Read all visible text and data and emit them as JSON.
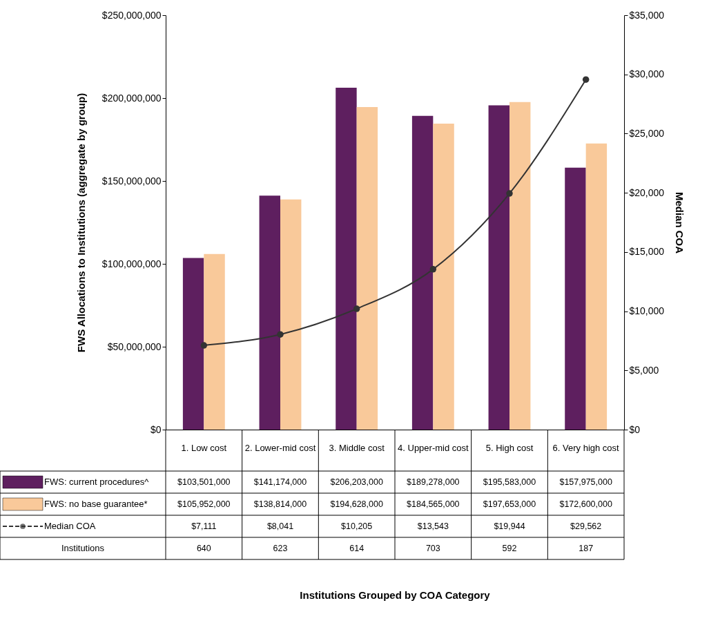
{
  "chart_data": {
    "type": "bar",
    "categories": [
      "1. Low cost",
      "2. Lower-mid cost",
      "3. Middle cost",
      "4. Upper-mid cost",
      "5. High cost",
      "6. Very high cost"
    ],
    "ylabel": "FWS Allocations to Institutions (aggregate by group)",
    "y2label": "Median COA",
    "ylim": [
      0,
      250000000
    ],
    "yticks": [
      {
        "value": 0,
        "label": "$0"
      },
      {
        "value": 50000000,
        "label": "$50,000,000"
      },
      {
        "value": 100000000,
        "label": "$100,000,000"
      },
      {
        "value": 150000000,
        "label": "$150,000,000"
      },
      {
        "value": 200000000,
        "label": "$200,000,000"
      },
      {
        "value": 250000000,
        "label": "$250,000,000"
      }
    ],
    "y2lim": [
      0,
      35000
    ],
    "y2ticks": [
      {
        "value": 0,
        "label": "$0"
      },
      {
        "value": 5000,
        "label": "$5,000"
      },
      {
        "value": 10000,
        "label": "$10,000"
      },
      {
        "value": 15000,
        "label": "$15,000"
      },
      {
        "value": 20000,
        "label": "$20,000"
      },
      {
        "value": 25000,
        "label": "$25,000"
      },
      {
        "value": 30000,
        "label": "$30,000"
      },
      {
        "value": 35000,
        "label": "$35,000"
      }
    ],
    "legend": "bottom",
    "marker": "circle",
    "line_style": "solid",
    "series": [
      {
        "name": "FWS: current procedures^",
        "color": "#5e1f5f",
        "values": [
          103501000,
          141174000,
          206203000,
          189278000,
          195583000,
          157975000
        ],
        "value_labels": [
          "$103,501,000",
          "$141,174,000",
          "$206,203,000",
          "$189,278,000",
          "$195,583,000",
          "$157,975,000"
        ]
      },
      {
        "name": "FWS: no base guarantee*",
        "color": "#f9c99a",
        "values": [
          105952000,
          138814000,
          194628000,
          184565000,
          197653000,
          172600000
        ],
        "value_labels": [
          "$105,952,000",
          "$138,814,000",
          "$194,628,000",
          "$184,565,000",
          "$197,653,000",
          "$172,600,000"
        ]
      },
      {
        "name": "Median COA",
        "type": "line",
        "axis": "y2",
        "color": "#333333",
        "values": [
          7111,
          8041,
          10205,
          13543,
          19944,
          29562
        ],
        "value_labels": [
          "$7,111",
          "$8,041",
          "$10,205",
          "$13,543",
          "$19,944",
          "$29,562"
        ]
      }
    ],
    "annotations": [
      "Institutions",
      "640",
      "623",
      "614",
      "703",
      "592",
      "187",
      "Institutions Grouped by COA Category"
    ]
  }
}
